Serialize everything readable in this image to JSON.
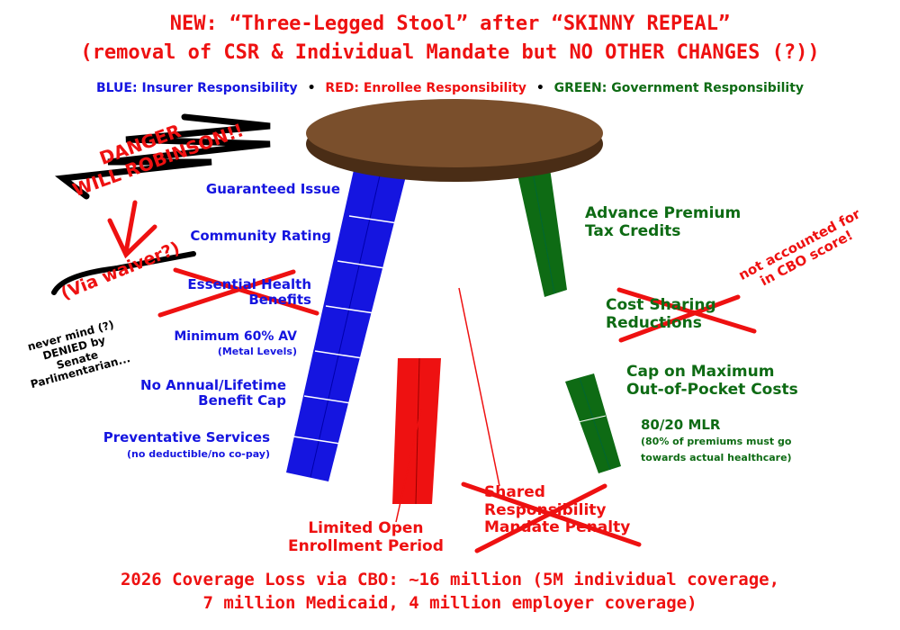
{
  "title": {
    "line1": "NEW: “Three-Legged Stool” after “SKINNY REPEAL”",
    "line2": "(removal of CSR & Individual Mandate but NO OTHER CHANGES (?))"
  },
  "legend": {
    "blue": "BLUE: Insurer Responsibility",
    "sep": "•",
    "red": "RED: Enrollee Responsibility",
    "green": "GREEN: Government Responsibility"
  },
  "colors": {
    "blue": "#1515e0",
    "red": "#ee1111",
    "green": "#0e6b14",
    "seat": "#6b4324"
  },
  "insurer": [
    {
      "label": "Guaranteed Issue"
    },
    {
      "label": "Community Rating"
    },
    {
      "label": "Essential Health",
      "label2": "Benefits",
      "crossed": true
    },
    {
      "label": "Minimum 60% AV",
      "sub": "(Metal Levels)"
    },
    {
      "label": "No Annual/Lifetime",
      "label2": "Benefit Cap"
    },
    {
      "label": "Preventative Services",
      "sub": "(no deductible/no co-pay)"
    }
  ],
  "government": [
    {
      "label": "Advance Premium",
      "label2": "Tax Credits"
    },
    {
      "label": "Cost Sharing",
      "label2": "Reductions",
      "crossed": true
    },
    {
      "label": "Cap on Maximum",
      "label2": "Out-of-Pocket Costs"
    },
    {
      "label": "80/20 MLR",
      "sub": "(80% of premiums must go",
      "sub2": "towards actual healthcare)"
    }
  ],
  "enrollee": [
    {
      "label": "Limited Open",
      "label2": "Enrollment Period"
    },
    {
      "label": "Shared",
      "label2": "Responsibility",
      "label3": "Mandate Penalty",
      "crossed": true
    }
  ],
  "annotations": {
    "danger": "DANGER",
    "will": "WILL ROBINSON!!",
    "waiver": "(Via waiver?)",
    "never": "never mind (?)",
    "denied": "DENIED by",
    "senate": "Senate",
    "parl": "Parlimentarian...",
    "cbo1": "not accounted for",
    "cbo2": "in CBO score!"
  },
  "footer": {
    "line1": "2026 Coverage Loss via CBO: ~16 million (5M individual coverage,",
    "line2": "7 million Medicaid, 4 million employer coverage)"
  }
}
